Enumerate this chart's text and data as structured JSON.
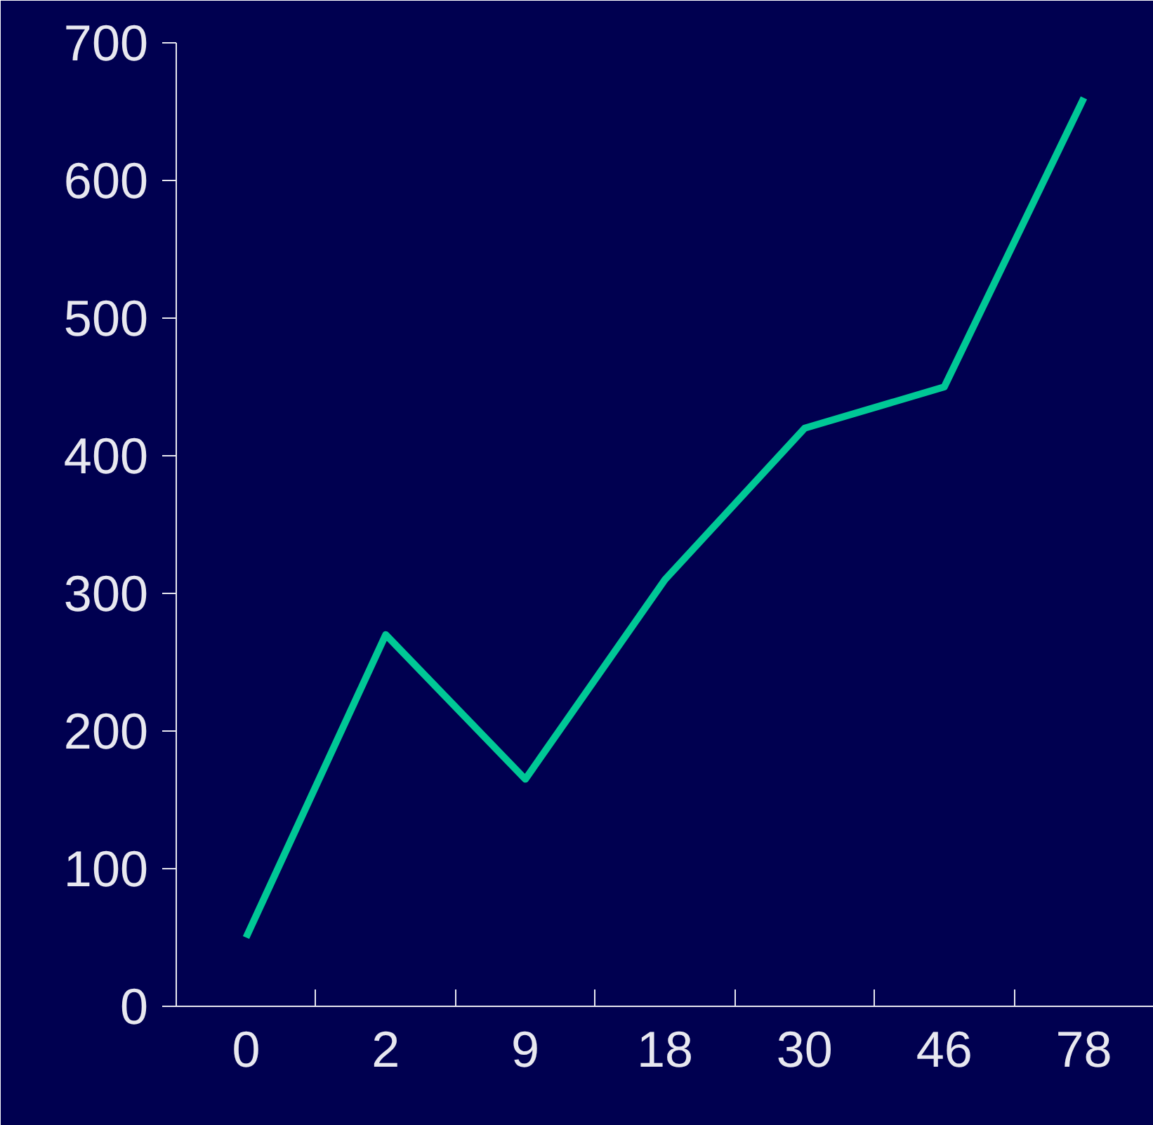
{
  "chart_data": {
    "type": "line",
    "categories": [
      "0",
      "2",
      "9",
      "18",
      "30",
      "46",
      "78"
    ],
    "series": [
      {
        "color": "#00c896",
        "values": [
          50,
          270,
          165,
          310,
          420,
          450,
          660
        ]
      }
    ],
    "ylim": [
      0,
      700
    ],
    "yticks": [
      0,
      100,
      200,
      300,
      400,
      500,
      600,
      700
    ],
    "grid": false,
    "marker": "none",
    "line_style": "solid"
  }
}
